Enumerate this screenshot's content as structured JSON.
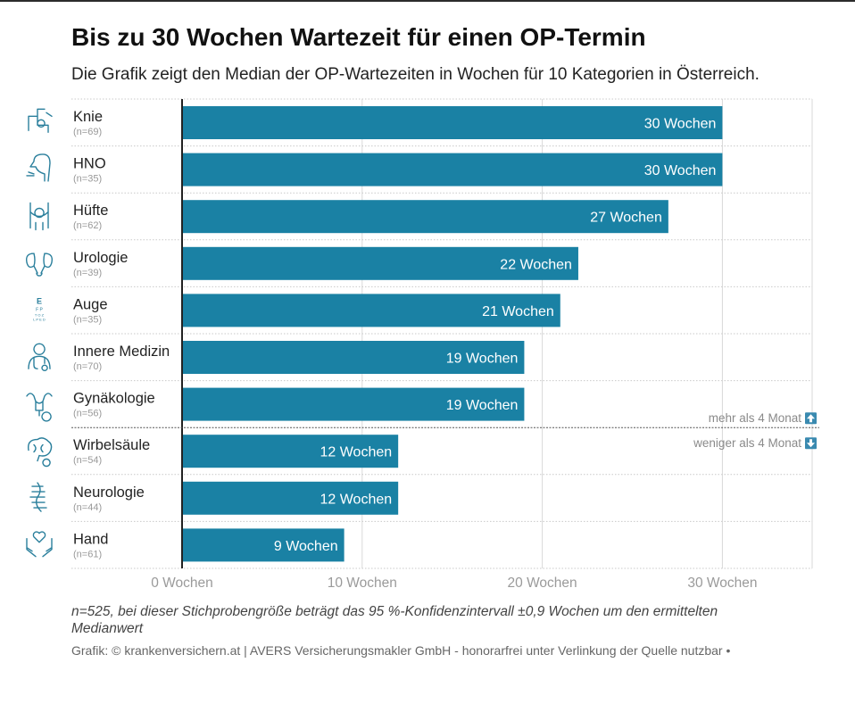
{
  "title": "Bis zu 30 Wochen Wartezeit für einen OP-Termin",
  "subtitle": "Die Grafik zeigt den Median der OP-Wartezeiten in Wochen für 10 Kategorien in Österreich.",
  "footnote": "n=525, bei dieser Stichprobengröße beträgt das 95 %-Konfidenzintervall ±0,9 Wochen um den ermittelten Medianwert",
  "credit": "Grafik: © krankenversichern.at | AVERS Versicherungsmakler GmbH - honorarfrei unter Verlinkung der Quelle nutzbar •",
  "colors": {
    "bar": "#1a81a4",
    "icon": "#2a7f9c",
    "label": "#222222",
    "n_label": "#999999",
    "grid": "#d8d8d8"
  },
  "chart_data": {
    "type": "bar",
    "orientation": "horizontal",
    "categories": [
      "Knie",
      "HNO",
      "Hüfte",
      "Urologie",
      "Auge",
      "Innere Medizin",
      "Gynäkologie",
      "Wirbelsäule",
      "Neurologie",
      "Hand"
    ],
    "sample_sizes": [
      "(n=69)",
      "(n=35)",
      "(n=62)",
      "(n=39)",
      "(n=35)",
      "(n=70)",
      "(n=56)",
      "(n=54)",
      "(n=44)",
      "(n=61)"
    ],
    "icons": [
      "knee-icon",
      "ent-icon",
      "hip-icon",
      "kidney-icon",
      "eye-chart-icon",
      "stethoscope-icon",
      "uterus-icon",
      "brain-icon",
      "spine-icon",
      "hand-heart-icon"
    ],
    "values": [
      30,
      30,
      27,
      22,
      21,
      19,
      19,
      12,
      12,
      9
    ],
    "value_labels": [
      "30 Wochen",
      "30 Wochen",
      "27 Wochen",
      "22 Wochen",
      "21 Wochen",
      "19 Wochen",
      "19 Wochen",
      "12 Wochen",
      "12 Wochen",
      "9 Wochen"
    ],
    "xticks": [
      0,
      10,
      20,
      30
    ],
    "xtick_labels": [
      "0 Wochen",
      "10 Wochen",
      "20 Wochen",
      "30 Wochen"
    ],
    "xlim": [
      0,
      35
    ],
    "grid": true,
    "threshold": {
      "above_label": "mehr als 4 Monat",
      "below_label": "weniger als 4 Monat",
      "after_category": "Gynäkologie"
    }
  }
}
